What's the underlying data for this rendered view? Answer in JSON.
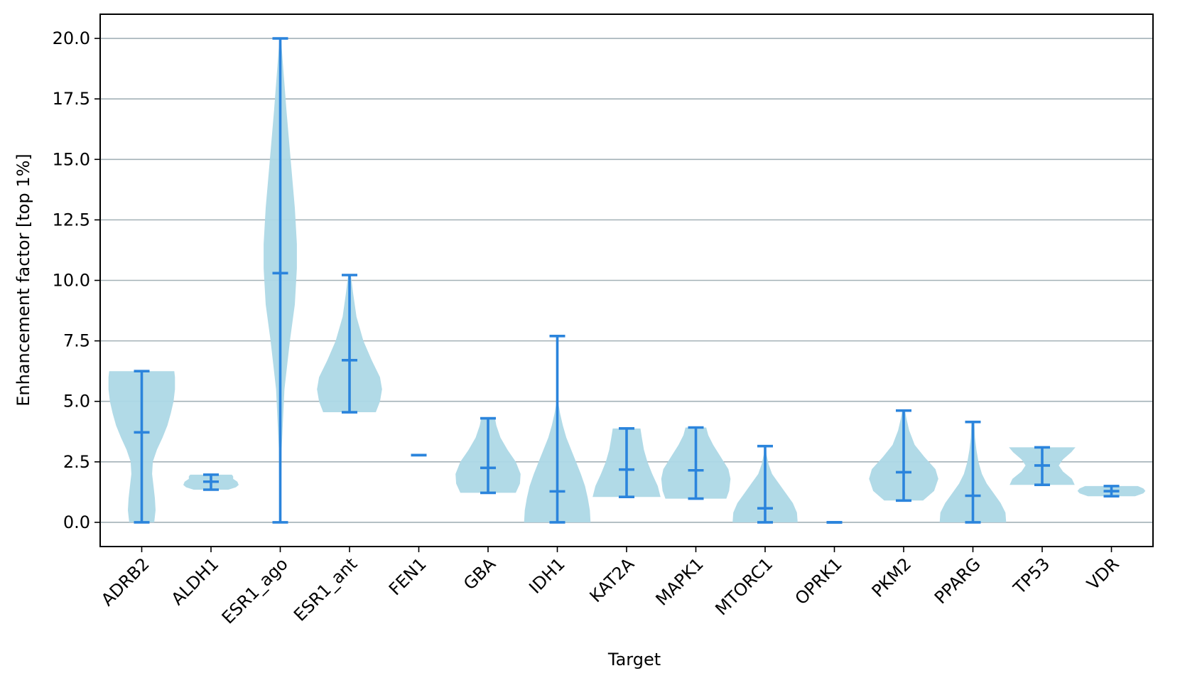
{
  "chart_data": {
    "type": "violin",
    "xlabel": "Target",
    "ylabel": "Enhancement factor [top 1%]",
    "ylim": [
      -1.0,
      21.0
    ],
    "yticks": [
      "0.0",
      "2.5",
      "5.0",
      "7.5",
      "10.0",
      "12.5",
      "15.0",
      "17.5",
      "20.0"
    ],
    "grid": "horizontal",
    "colors": {
      "body": "#add8e6",
      "lines": "#2b84dc",
      "grid": "#a3b1b7"
    },
    "categories": [
      "ADRB2",
      "ALDH1",
      "ESR1_ago",
      "ESR1_ant",
      "FEN1",
      "GBA",
      "IDH1",
      "KAT2A",
      "MAPK1",
      "MTORC1",
      "OPRK1",
      "PKM2",
      "PPARG",
      "TP53",
      "VDR"
    ],
    "series": [
      {
        "min": 0.0,
        "max": 6.25,
        "median": 3.72,
        "shape": [
          [
            0.0,
            0.18
          ],
          [
            0.5,
            0.2
          ],
          [
            1.0,
            0.19
          ],
          [
            1.5,
            0.17
          ],
          [
            2.0,
            0.15
          ],
          [
            2.5,
            0.16
          ],
          [
            3.0,
            0.22
          ],
          [
            3.5,
            0.3
          ],
          [
            4.0,
            0.37
          ],
          [
            4.5,
            0.42
          ],
          [
            5.0,
            0.46
          ],
          [
            5.5,
            0.48
          ],
          [
            6.0,
            0.48
          ],
          [
            6.25,
            0.47
          ]
        ]
      },
      {
        "min": 1.35,
        "max": 1.97,
        "median": 1.68,
        "shape": [
          [
            1.35,
            0.25
          ],
          [
            1.45,
            0.36
          ],
          [
            1.55,
            0.4
          ],
          [
            1.68,
            0.38
          ],
          [
            1.8,
            0.32
          ],
          [
            1.9,
            0.32
          ],
          [
            1.97,
            0.3
          ]
        ]
      },
      {
        "min": 0.0,
        "max": 20.0,
        "median": 10.3,
        "shape": [
          [
            0.0,
            0.01
          ],
          [
            3.0,
            0.02
          ],
          [
            5.5,
            0.06
          ],
          [
            7.5,
            0.14
          ],
          [
            9.0,
            0.21
          ],
          [
            10.5,
            0.24
          ],
          [
            11.5,
            0.24
          ],
          [
            13.0,
            0.21
          ],
          [
            15.0,
            0.15
          ],
          [
            17.0,
            0.09
          ],
          [
            18.5,
            0.05
          ],
          [
            20.0,
            0.01
          ]
        ]
      },
      {
        "min": 4.55,
        "max": 10.22,
        "median": 6.7,
        "shape": [
          [
            4.55,
            0.38
          ],
          [
            5.0,
            0.44
          ],
          [
            5.5,
            0.47
          ],
          [
            6.0,
            0.44
          ],
          [
            6.7,
            0.32
          ],
          [
            7.5,
            0.2
          ],
          [
            8.5,
            0.1
          ],
          [
            9.5,
            0.05
          ],
          [
            10.22,
            0.02
          ]
        ]
      },
      {
        "min": 2.78,
        "max": 2.78,
        "median": 2.78,
        "shape": []
      },
      {
        "min": 1.22,
        "max": 4.3,
        "median": 2.25,
        "shape": [
          [
            1.22,
            0.4
          ],
          [
            1.6,
            0.46
          ],
          [
            2.0,
            0.47
          ],
          [
            2.5,
            0.4
          ],
          [
            3.0,
            0.28
          ],
          [
            3.5,
            0.18
          ],
          [
            4.0,
            0.12
          ],
          [
            4.3,
            0.1
          ]
        ]
      },
      {
        "min": 0.0,
        "max": 7.7,
        "median": 1.28,
        "shape": [
          [
            0.0,
            0.48
          ],
          [
            0.5,
            0.47
          ],
          [
            1.0,
            0.44
          ],
          [
            1.5,
            0.4
          ],
          [
            2.0,
            0.34
          ],
          [
            2.5,
            0.27
          ],
          [
            3.0,
            0.2
          ],
          [
            3.5,
            0.13
          ],
          [
            4.0,
            0.08
          ],
          [
            4.5,
            0.04
          ],
          [
            5.0,
            0.01
          ],
          [
            7.7,
            0.0
          ]
        ]
      },
      {
        "min": 1.05,
        "max": 3.88,
        "median": 2.18,
        "shape": [
          [
            1.05,
            0.49
          ],
          [
            1.5,
            0.45
          ],
          [
            2.0,
            0.37
          ],
          [
            2.5,
            0.3
          ],
          [
            3.0,
            0.25
          ],
          [
            3.5,
            0.22
          ],
          [
            3.88,
            0.2
          ]
        ]
      },
      {
        "min": 0.98,
        "max": 3.92,
        "median": 2.15,
        "shape": [
          [
            0.98,
            0.44
          ],
          [
            1.3,
            0.48
          ],
          [
            1.8,
            0.5
          ],
          [
            2.2,
            0.47
          ],
          [
            2.7,
            0.36
          ],
          [
            3.2,
            0.25
          ],
          [
            3.6,
            0.18
          ],
          [
            3.92,
            0.15
          ]
        ]
      },
      {
        "min": 0.0,
        "max": 3.15,
        "median": 0.58,
        "shape": [
          [
            0.0,
            0.47
          ],
          [
            0.4,
            0.46
          ],
          [
            0.8,
            0.4
          ],
          [
            1.2,
            0.3
          ],
          [
            1.6,
            0.2
          ],
          [
            2.0,
            0.1
          ],
          [
            2.4,
            0.05
          ],
          [
            2.8,
            0.02
          ],
          [
            3.15,
            0.01
          ]
        ]
      },
      {
        "min": 0.0,
        "max": 0.0,
        "median": 0.0,
        "shape": []
      },
      {
        "min": 0.9,
        "max": 4.62,
        "median": 2.07,
        "shape": [
          [
            0.9,
            0.28
          ],
          [
            1.3,
            0.44
          ],
          [
            1.8,
            0.5
          ],
          [
            2.2,
            0.46
          ],
          [
            2.7,
            0.3
          ],
          [
            3.2,
            0.16
          ],
          [
            3.8,
            0.08
          ],
          [
            4.3,
            0.04
          ],
          [
            4.62,
            0.02
          ]
        ]
      },
      {
        "min": 0.0,
        "max": 4.15,
        "median": 1.1,
        "shape": [
          [
            0.0,
            0.48
          ],
          [
            0.4,
            0.47
          ],
          [
            0.8,
            0.4
          ],
          [
            1.2,
            0.3
          ],
          [
            1.6,
            0.2
          ],
          [
            2.0,
            0.13
          ],
          [
            2.5,
            0.08
          ],
          [
            3.0,
            0.05
          ],
          [
            3.5,
            0.03
          ],
          [
            4.15,
            0.02
          ]
        ]
      },
      {
        "min": 1.55,
        "max": 3.1,
        "median": 2.35,
        "shape": [
          [
            1.55,
            0.47
          ],
          [
            1.8,
            0.43
          ],
          [
            2.1,
            0.3
          ],
          [
            2.35,
            0.24
          ],
          [
            2.6,
            0.3
          ],
          [
            2.9,
            0.42
          ],
          [
            3.1,
            0.48
          ]
        ]
      },
      {
        "min": 1.08,
        "max": 1.5,
        "median": 1.29,
        "shape": [
          [
            1.08,
            0.34
          ],
          [
            1.2,
            0.46
          ],
          [
            1.3,
            0.49
          ],
          [
            1.4,
            0.46
          ],
          [
            1.5,
            0.38
          ]
        ]
      }
    ]
  }
}
